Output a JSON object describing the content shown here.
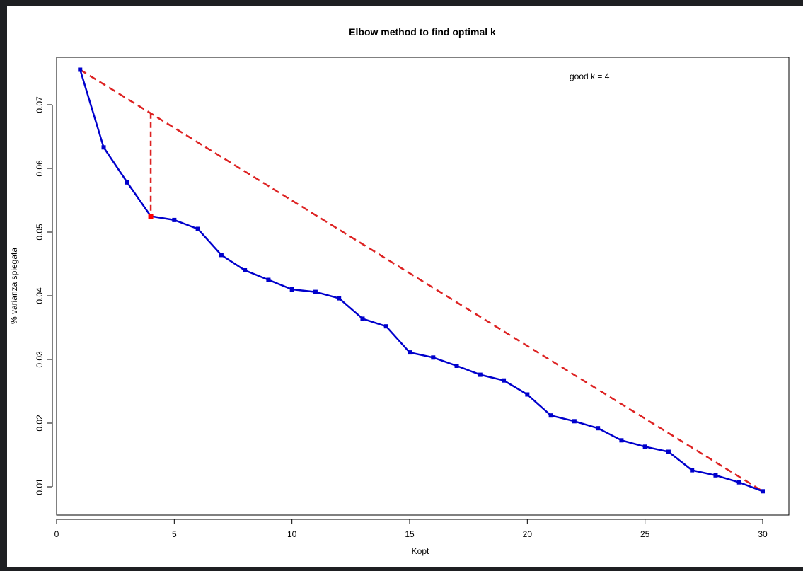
{
  "chart_data": {
    "type": "line",
    "title": "Elbow method to find optimal k",
    "xlabel": "Kopt",
    "ylabel": "% varianza spiegata",
    "xlim": [
      0,
      30
    ],
    "ylim": [
      0.0085,
      0.077
    ],
    "x_ticks": [
      "0",
      "5",
      "10",
      "15",
      "20",
      "25",
      "30"
    ],
    "y_ticks": [
      "0.01",
      "0.02",
      "0.03",
      "0.04",
      "0.05",
      "0.06",
      "0.07"
    ],
    "annotation": "good k = 4",
    "grid": false,
    "colors": {
      "series": "#0000cc",
      "reference": "#dd2222",
      "highlight": "#ff0000"
    },
    "series": [
      {
        "x": [
          1,
          2,
          3,
          4,
          5,
          6,
          7,
          8,
          9,
          10,
          11,
          12,
          13,
          14,
          15,
          16,
          17,
          18,
          19,
          20,
          21,
          22,
          23,
          24,
          25,
          26,
          27,
          28,
          29,
          30
        ],
        "values": [
          0.0755,
          0.0633,
          0.0578,
          0.0525,
          0.0519,
          0.0505,
          0.0464,
          0.044,
          0.0425,
          0.041,
          0.0406,
          0.0396,
          0.0364,
          0.0352,
          0.0311,
          0.0303,
          0.029,
          0.0276,
          0.0267,
          0.0245,
          0.0212,
          0.0203,
          0.0192,
          0.0173,
          0.0163,
          0.0155,
          0.0126,
          0.0118,
          0.0107,
          0.0093
        ]
      }
    ],
    "reference_line": {
      "from": [
        1,
        0.0755
      ],
      "to": [
        30,
        0.0093
      ]
    },
    "elbow": {
      "x": 4,
      "y": 0.0525,
      "line_top": 0.0687
    }
  }
}
